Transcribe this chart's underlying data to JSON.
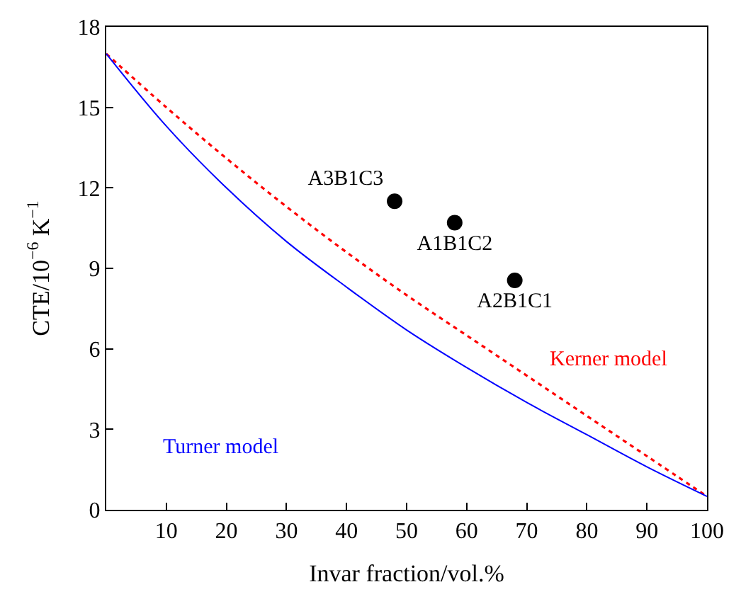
{
  "chart_data": {
    "type": "line",
    "xlabel": "Invar fraction/vol.%",
    "ylabel": "CTE/10$^{−6}$ K$^{−1}$",
    "xlim": [
      0,
      100
    ],
    "xticks": [
      {
        "value": 0,
        "label": null
      },
      10,
      20,
      30,
      40,
      50,
      60,
      70,
      80,
      90,
      100
    ],
    "ylim": [
      0,
      18
    ],
    "yticks": [
      0,
      3,
      6,
      9,
      12,
      15,
      18
    ],
    "legend": false,
    "series": [
      {
        "color": "#ff0000",
        "line_style": "dotted",
        "x": [
          0,
          10,
          20,
          30,
          40,
          50,
          60,
          70,
          80,
          90,
          100
        ],
        "values": [
          17,
          15,
          13.1,
          11.3,
          9.6,
          8.0,
          6.5,
          5.0,
          3.5,
          2.0,
          0.5
        ]
      },
      {
        "color": "#0000ff",
        "line_style": "solid",
        "x": [
          0,
          10,
          20,
          30,
          40,
          50,
          60,
          70,
          80,
          90,
          100
        ],
        "values": [
          17,
          14.3,
          12.0,
          10.0,
          8.3,
          6.7,
          5.3,
          4.0,
          2.8,
          1.6,
          0.5
        ]
      },
      {
        "type": "scatter",
        "color": "#000000",
        "marker": "circle",
        "x": [
          48,
          58,
          68
        ],
        "values": [
          11.5,
          10.7,
          8.55
        ],
        "value_labels": [
          "A3B1C3",
          "A1B1C2",
          "A2B1C1"
        ]
      }
    ],
    "annotations": [
      "Kerner model",
      "Turner model"
    ]
  }
}
